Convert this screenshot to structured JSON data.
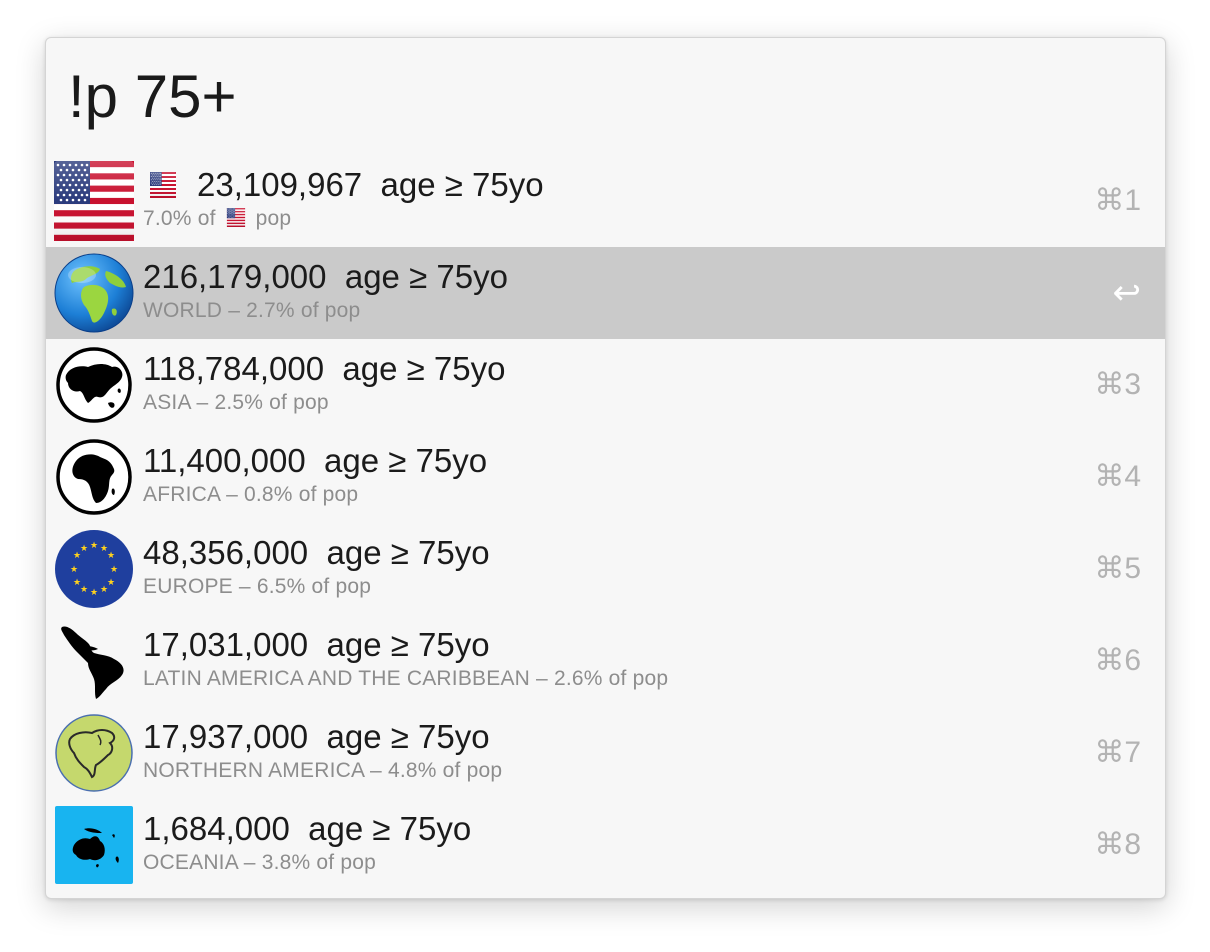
{
  "query": {
    "value": "!p 75+"
  },
  "results": [
    {
      "icon": "us-flag-icon",
      "title": "23,109,967  age ≥ 75yo",
      "sub_prefix": "7.0% of",
      "sub_suffix": "pop",
      "shortcut": "⌘1"
    },
    {
      "icon": "globe-icon",
      "title": "216,179,000  age ≥ 75yo",
      "subtitle": "WORLD – 2.7% of pop",
      "shortcut": "↩",
      "selected": true
    },
    {
      "icon": "asia-map-icon",
      "title": "118,784,000  age ≥ 75yo",
      "subtitle": "ASIA – 2.5% of pop",
      "shortcut": "⌘3"
    },
    {
      "icon": "africa-map-icon",
      "title": "11,400,000  age ≥ 75yo",
      "subtitle": "AFRICA – 0.8% of pop",
      "shortcut": "⌘4"
    },
    {
      "icon": "eu-flag-icon",
      "title": "48,356,000  age ≥ 75yo",
      "subtitle": "EUROPE – 6.5% of pop",
      "shortcut": "⌘5"
    },
    {
      "icon": "latin-america-map-icon",
      "title": "17,031,000  age ≥ 75yo",
      "subtitle": "LATIN AMERICA AND THE CARIBBEAN – 2.6% of pop",
      "shortcut": "⌘6"
    },
    {
      "icon": "north-america-map-icon",
      "title": "17,937,000  age ≥ 75yo",
      "subtitle": "NORTHERN AMERICA – 4.8% of pop",
      "shortcut": "⌘7"
    },
    {
      "icon": "oceania-map-icon",
      "title": "1,684,000  age ≥ 75yo",
      "subtitle": "OCEANIA – 3.8% of pop",
      "shortcut": "⌘8"
    }
  ],
  "colors": {
    "selected_row": "#cacaca",
    "window_bg": "#f7f7f7",
    "subtitle_text": "#8d8d8d",
    "shortcut_text": "#b3b3b3",
    "eu_blue": "#1f3f9e",
    "oceania_blue": "#18b4f0",
    "north_america_green": "#c5d86d"
  }
}
